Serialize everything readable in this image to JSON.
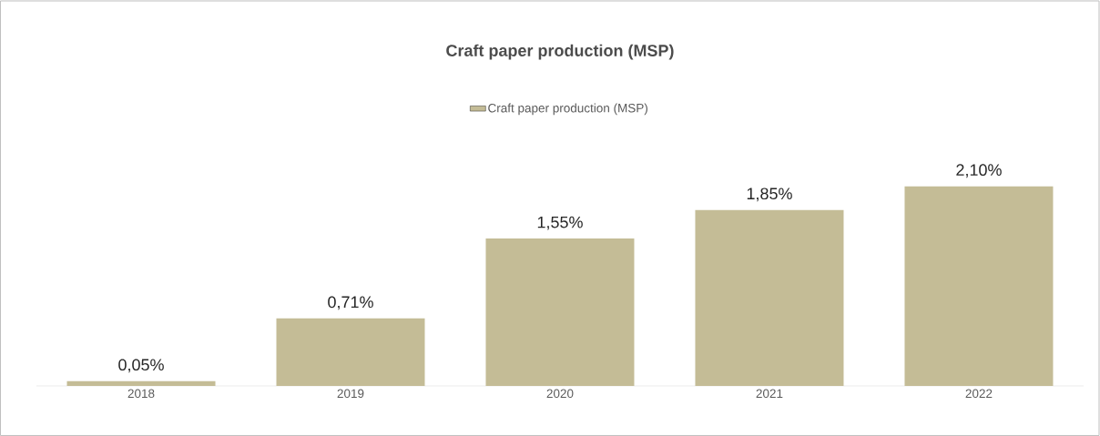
{
  "chart_data": {
    "type": "bar",
    "title": "Craft paper production (MSP)",
    "categories": [
      "2018",
      "2019",
      "2020",
      "2021",
      "2022"
    ],
    "series": [
      {
        "name": "Craft paper production (MSP)",
        "color": "#c4bc96",
        "values": [
          0.05,
          0.71,
          1.55,
          1.85,
          2.1
        ],
        "value_labels": [
          "0,05%",
          "0,71%",
          "1,55%",
          "1,85%",
          "2,10%"
        ]
      }
    ],
    "legend": "top"
  }
}
